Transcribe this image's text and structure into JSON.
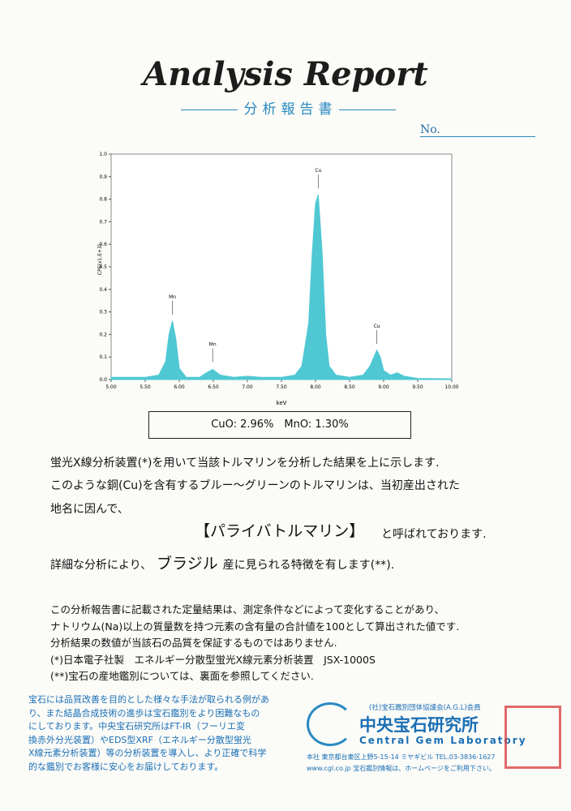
{
  "header": {
    "title": "Analysis Report",
    "subtitle": "分析報告書",
    "number_label": "No."
  },
  "chart_data": {
    "type": "area",
    "y_label": "CPS(x1.E+3)",
    "x_label": "keV",
    "color": "#4fc8d4",
    "x": [
      5.0,
      5.5,
      5.7,
      5.8,
      5.85,
      5.9,
      5.95,
      6.0,
      6.1,
      6.3,
      6.4,
      6.49,
      6.6,
      6.8,
      7.0,
      7.2,
      7.5,
      7.7,
      7.8,
      7.9,
      7.95,
      8.0,
      8.04,
      8.1,
      8.15,
      8.2,
      8.3,
      8.5,
      8.7,
      8.8,
      8.9,
      8.95,
      9.0,
      9.1,
      9.2,
      9.3,
      9.5,
      10.0
    ],
    "values": [
      0.01,
      0.01,
      0.02,
      0.08,
      0.2,
      0.26,
      0.18,
      0.05,
      0.01,
      0.01,
      0.03,
      0.045,
      0.02,
      0.01,
      0.015,
      0.01,
      0.01,
      0.02,
      0.06,
      0.25,
      0.55,
      0.78,
      0.82,
      0.55,
      0.2,
      0.06,
      0.02,
      0.01,
      0.02,
      0.06,
      0.13,
      0.1,
      0.04,
      0.02,
      0.03,
      0.015,
      0.005,
      0.003
    ],
    "xlim": [
      5,
      10
    ],
    "xticks": [
      {
        "value": 5,
        "label": "5.00"
      },
      {
        "value": 5.5,
        "label": "5.50"
      },
      {
        "value": 6,
        "label": "6.00"
      },
      {
        "value": 6.5,
        "label": "6.50"
      },
      {
        "value": 7,
        "label": "7.00"
      },
      {
        "value": 7.5,
        "label": "7.50"
      },
      {
        "value": 8,
        "label": "8.00"
      },
      {
        "value": 8.5,
        "label": "8.50"
      },
      {
        "value": 9,
        "label": "9.00"
      },
      {
        "value": 9.5,
        "label": "9.50"
      },
      {
        "value": 10,
        "label": "10.00"
      }
    ],
    "ylim": [
      0,
      1
    ],
    "yticks": [
      {
        "value": 0,
        "label": "0.0"
      },
      0.1,
      0.2,
      0.3,
      0.4,
      0.5,
      0.6,
      0.7,
      0.8,
      0.9,
      {
        "value": 1,
        "label": "1.0"
      }
    ],
    "annotations": [
      {
        "text": "Mn",
        "x": 5.9,
        "y": 0.36
      },
      {
        "text": "Mn",
        "x": 6.49,
        "y": 0.15
      },
      {
        "text": "Cu",
        "x": 8.04,
        "y": 0.92
      },
      {
        "text": "Cu",
        "x": 8.9,
        "y": 0.23
      }
    ]
  },
  "result": "CuO: 2.96%　MnO: 1.30%",
  "body": {
    "line1": "蛍光X線分析装置(*)を用いて当該トルマリンを分析した結果を上に示します.",
    "line2": "このような銅(Cu)を含有するブルー～グリーンのトルマリンは、当初産出された",
    "line3": "地名に因んで、",
    "gem_name": "【パライバトルマリン】",
    "gem_suffix": "と呼ばれております.",
    "origin_prefix": "詳細な分析により、",
    "origin": "ブラジル",
    "origin_suffix": "産に見られる特徴を有します(**)."
  },
  "notes": [
    "この分析報告書に記載された定量結果は、測定条件などによって変化することがあり、",
    "ナトリウム(Na)以上の質量数を持つ元素の含有量の合計値を100として算出された値です.",
    "分析結果の数値が当該石の品質を保証するものではありません.",
    "(*)日本電子社製　エネルギー分散型蛍光X線元素分析装置　JSX-1000S",
    "(**)宝石の産地鑑別については、裏面を参照してください."
  ],
  "footer": {
    "left": [
      "宝石には品質改善を目的とした様々な手法が取られる例があ",
      "り、また結晶合成技術の進歩は宝石鑑別をより困難なもの",
      "にしております。中央宝石研究所はFT-IR（フーリエ変",
      "換赤外分光装置）やEDS型XRF（エネルギー分散型蛍光",
      "X線元素分析装置）等の分析装置を導入し、より正確で科学",
      "的な鑑別でお客様に安心をお届けしております。"
    ],
    "member": "(社)宝石鑑別団体協議会(A.G.L)会員",
    "lab_jp": "中央宝石研究所",
    "lab_en": "Central Gem Laboratory",
    "address": "本社 東京都台東区上野5-15-14 ミヤギビル TEL.03-3836-1627",
    "web": "www.cgl.co.jp 宝石鑑別情報は、ホームページをご利用下さい。"
  }
}
